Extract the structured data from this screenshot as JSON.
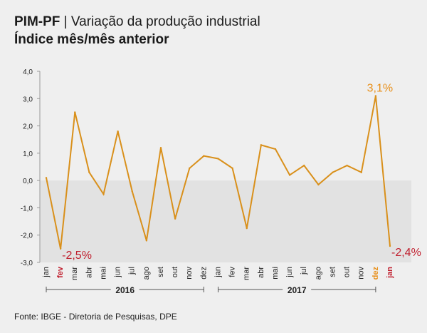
{
  "header": {
    "title_strong": "PIM-PF",
    "title_separator": " | ",
    "title_rest": "Variação da produção industrial",
    "subtitle": "Índice mês/mês anterior"
  },
  "source": "Fonte: IBGE - Diretoria de Pesquisas, DPE",
  "colors": {
    "line": "#d9901b",
    "highlight_orange": "#e8901b",
    "highlight_red": "#c0202f",
    "negative_band": "#e2e2e2",
    "grid": "#c8c8c8",
    "text": "#222222"
  },
  "chart_data": {
    "type": "line",
    "title": "PIM-PF | Variação da produção industrial",
    "subtitle": "Índice mês/mês anterior",
    "xlabel": "",
    "ylabel": "",
    "ylim": [
      -3.0,
      4.0
    ],
    "y_ticks": [
      "4,0",
      "3,0",
      "2,0",
      "1,0",
      "0,0",
      "-1,0",
      "-2,0",
      "-3,0"
    ],
    "y_tick_values": [
      4,
      3,
      2,
      1,
      0,
      -1,
      -2,
      -3
    ],
    "grid": false,
    "negative_region_shaded": true,
    "categories": [
      "jan",
      "fev",
      "mar",
      "abr",
      "mai",
      "jun",
      "jul",
      "ago",
      "set",
      "out",
      "nov",
      "dez",
      "jan",
      "fev",
      "mar",
      "abr",
      "mai",
      "jun",
      "jul",
      "ago",
      "set",
      "out",
      "nov",
      "dez",
      "jan"
    ],
    "highlight_categories": {
      "1": "red",
      "23": "orange",
      "24": "red"
    },
    "groups": [
      {
        "label": "2016",
        "start": 0,
        "end": 11
      },
      {
        "label": "2017",
        "start": 12,
        "end": 23
      }
    ],
    "series": [
      {
        "values": [
          0.1,
          -2.5,
          2.5,
          0.3,
          -0.5,
          1.8,
          -0.4,
          -2.2,
          1.2,
          -1.4,
          0.45,
          0.9,
          0.8,
          0.45,
          -1.75,
          1.3,
          1.15,
          0.2,
          0.55,
          -0.15,
          0.3,
          0.55,
          0.3,
          3.1,
          -2.4
        ]
      }
    ],
    "annotations": [
      {
        "index": 1,
        "text": "-2,5%",
        "color": "red"
      },
      {
        "index": 23,
        "text": "3,1%",
        "color": "orange"
      },
      {
        "index": 24,
        "text": "-2,4%",
        "color": "red"
      }
    ]
  }
}
